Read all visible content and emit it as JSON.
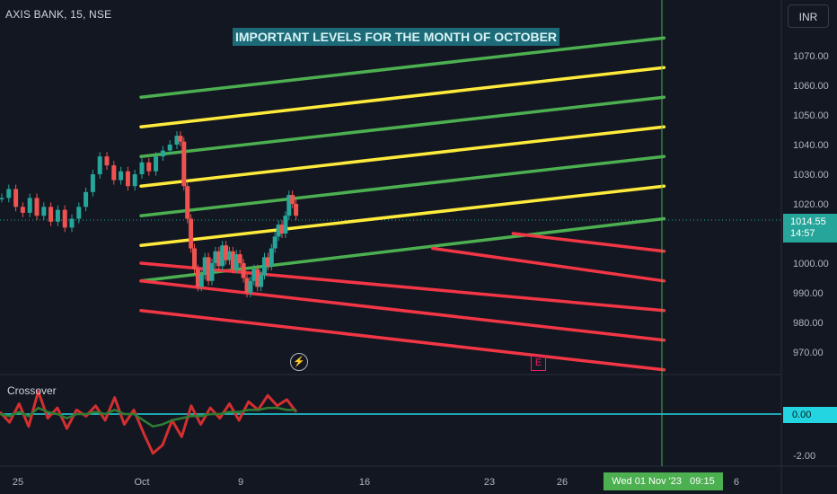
{
  "symbol": "AXIS BANK, 15, NSE",
  "currency": "INR",
  "annotation_title": "IMPORTANT LEVELS FOR THE MONTH OF OCTOBER",
  "oscillator_name": "Crossover",
  "last_price": "1014.55",
  "countdown": "14:57",
  "oscillator_value": "0.00",
  "cursor_date": "Wed 01 Nov '23   09:15",
  "icons": {
    "bolt": "⚡",
    "earnings": "E"
  },
  "colors": {
    "background": "#131722",
    "green_level": "#4caf50",
    "yellow_level": "#ffeb3b",
    "red_level": "#f23645",
    "candle_up": "#26a69a",
    "candle_down": "#ef5350",
    "osc_red": "#d32f2f",
    "osc_green": "#2e7d32",
    "zero_line": "#22d5e0",
    "cursor": "#4caf50"
  },
  "chart_data": [
    {
      "type": "candlestick",
      "title": "AXIS BANK, 15, NSE",
      "y_ticks": [
        "1070.00",
        "1060.00",
        "1050.00",
        "1040.00",
        "1030.00",
        "1020.00",
        "1010.00",
        "1000.00",
        "990.00",
        "980.00",
        "970.00"
      ],
      "x_ticks": [
        "25",
        "Oct",
        "9",
        "16",
        "23",
        "26",
        "6"
      ],
      "ylim": [
        962,
        1080
      ],
      "close_path": [
        [
          0,
          1022
        ],
        [
          0.4,
          1025
        ],
        [
          0.8,
          1019
        ],
        [
          1.2,
          1017
        ],
        [
          1.6,
          1022
        ],
        [
          2,
          1016
        ],
        [
          2.4,
          1019
        ],
        [
          2.8,
          1014
        ],
        [
          3.2,
          1018
        ],
        [
          3.6,
          1012
        ],
        [
          4,
          1015
        ],
        [
          4.4,
          1019
        ],
        [
          4.8,
          1024
        ],
        [
          5.2,
          1030
        ],
        [
          5.6,
          1036
        ],
        [
          6,
          1033
        ],
        [
          6.4,
          1028
        ],
        [
          6.8,
          1031
        ],
        [
          7.2,
          1026
        ],
        [
          7.6,
          1030
        ],
        [
          8,
          1034
        ],
        [
          8.4,
          1031
        ],
        [
          8.8,
          1036
        ],
        [
          9.2,
          1038
        ],
        [
          9.6,
          1040
        ],
        [
          10,
          1043
        ],
        [
          10.2,
          1041
        ],
        [
          10.4,
          1026
        ],
        [
          10.6,
          1015
        ],
        [
          10.8,
          1005
        ],
        [
          11,
          998
        ],
        [
          11.2,
          992
        ],
        [
          11.4,
          996
        ],
        [
          11.6,
          1002
        ],
        [
          11.8,
          994
        ],
        [
          12,
          1000
        ],
        [
          12.2,
          1004
        ],
        [
          12.4,
          999
        ],
        [
          12.6,
          1006
        ],
        [
          12.8,
          1001
        ],
        [
          13,
          1004
        ],
        [
          13.2,
          998
        ],
        [
          13.4,
          1003
        ],
        [
          13.6,
          1000
        ],
        [
          13.8,
          995
        ],
        [
          14,
          990
        ],
        [
          14.2,
          994
        ],
        [
          14.4,
          998
        ],
        [
          14.6,
          992
        ],
        [
          14.8,
          996
        ],
        [
          15,
          1002
        ],
        [
          15.2,
          999
        ],
        [
          15.4,
          1005
        ],
        [
          15.6,
          1009
        ],
        [
          15.8,
          1013
        ],
        [
          16,
          1010
        ],
        [
          16.2,
          1016
        ],
        [
          16.4,
          1023
        ],
        [
          16.6,
          1020
        ],
        [
          16.8,
          1016
        ]
      ],
      "levels": [
        {
          "color": "green",
          "x": [
            0,
            26
          ],
          "y": [
            1056,
            1076
          ]
        },
        {
          "color": "yellow",
          "x": [
            0,
            26
          ],
          "y": [
            1046,
            1066
          ]
        },
        {
          "color": "green",
          "x": [
            0,
            26
          ],
          "y": [
            1036,
            1056
          ]
        },
        {
          "color": "yellow",
          "x": [
            0,
            26
          ],
          "y": [
            1026,
            1046
          ]
        },
        {
          "color": "green",
          "x": [
            0,
            26
          ],
          "y": [
            1016,
            1036
          ]
        },
        {
          "color": "yellow",
          "x": [
            0,
            26
          ],
          "y": [
            1006,
            1026
          ]
        },
        {
          "color": "green",
          "x": [
            0,
            26
          ],
          "y": [
            994,
            1015
          ]
        },
        {
          "color": "red",
          "x": [
            18.5,
            26
          ],
          "y": [
            1010,
            1004
          ]
        },
        {
          "color": "red",
          "x": [
            14.5,
            26
          ],
          "y": [
            1005,
            994
          ]
        },
        {
          "color": "red",
          "x": [
            0,
            26
          ],
          "y": [
            1000,
            984
          ]
        },
        {
          "color": "red",
          "x": [
            0,
            26
          ],
          "y": [
            994,
            974
          ]
        },
        {
          "color": "red",
          "x": [
            0,
            26
          ],
          "y": [
            984,
            964
          ]
        }
      ]
    },
    {
      "type": "line",
      "title": "Crossover",
      "y_ticks": [
        "-2.00"
      ],
      "ylim": [
        -2.4,
        1.4
      ],
      "series": [
        {
          "color": "red",
          "values": [
            0.1,
            -0.4,
            0.5,
            -0.6,
            1.1,
            -0.2,
            0.3,
            -0.7,
            0.2,
            -0.1,
            0.4,
            -0.3,
            0.8,
            -0.5,
            0.2,
            -0.9,
            -1.9,
            -1.5,
            -0.3,
            -1.1,
            0.4,
            -0.5,
            0.3,
            -0.2,
            0.5,
            -0.3,
            0.6,
            0.2,
            0.9,
            0.4,
            0.7,
            0.1
          ]
        },
        {
          "color": "green",
          "values": [
            0.0,
            -0.1,
            0.1,
            -0.1,
            0.3,
            0.1,
            0.0,
            -0.2,
            0.0,
            0.0,
            0.1,
            0.0,
            0.2,
            0.0,
            0.0,
            -0.3,
            -0.6,
            -0.5,
            -0.3,
            -0.2,
            -0.1,
            -0.1,
            0.0,
            0.0,
            0.1,
            0.1,
            0.2,
            0.2,
            0.3,
            0.3,
            0.2,
            0.2
          ]
        }
      ]
    }
  ]
}
